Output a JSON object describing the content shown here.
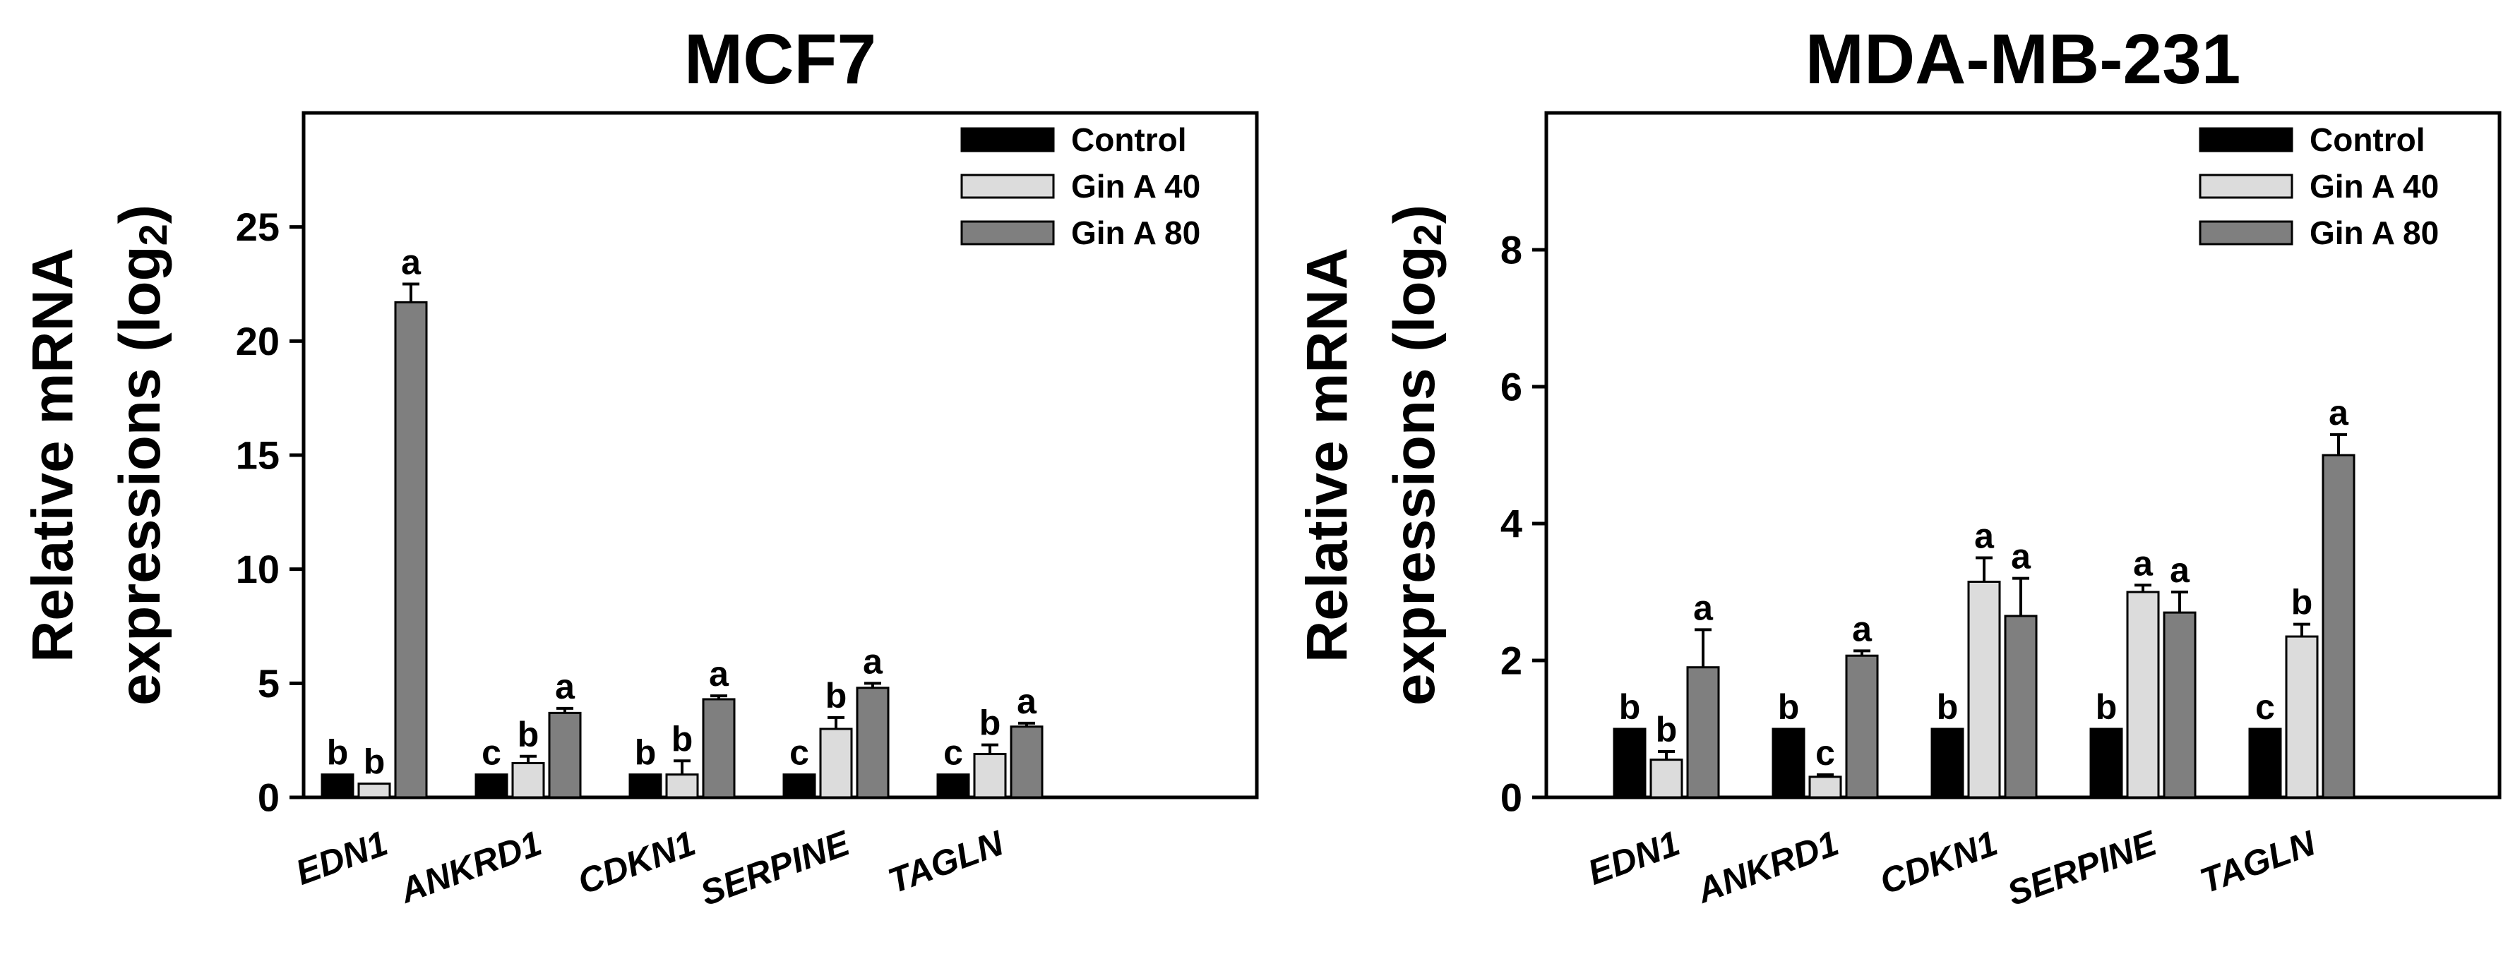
{
  "chart_data": [
    {
      "type": "bar",
      "title": "MCF7",
      "ylabel_line1": "Relative mRNA",
      "ylabel_line2": "expressions (log",
      "ylabel_sub": "2",
      "ylabel_close": ")",
      "ylim": [
        0,
        30
      ],
      "yticks": [
        0,
        5,
        10,
        15,
        20,
        25
      ],
      "grid": false,
      "legend_position": "top-right",
      "categories": [
        "EDN1",
        "ANKRD1",
        "CDKN1",
        "SERPINE",
        "TAGLN"
      ],
      "series": [
        {
          "name": "Control",
          "color": "#000000",
          "values": [
            1,
            1,
            1,
            1,
            1
          ],
          "errors": [
            0,
            0,
            0,
            0,
            0
          ],
          "letters": [
            "b",
            "c",
            "b",
            "c",
            "c"
          ]
        },
        {
          "name": "Gin A 40",
          "color": "#dcdcdc",
          "values": [
            0.6,
            1.5,
            1.0,
            3.0,
            1.9
          ],
          "errors": [
            0,
            0.3,
            0.6,
            0.5,
            0.4
          ],
          "letters": [
            "b",
            "b",
            "b",
            "b",
            "b"
          ]
        },
        {
          "name": "Gin A 80",
          "color": "#7f7f7f",
          "values": [
            21.7,
            3.7,
            4.3,
            4.8,
            3.1
          ],
          "errors": [
            0.8,
            0.2,
            0.15,
            0.2,
            0.15
          ],
          "letters": [
            "a",
            "a",
            "a",
            "a",
            "a"
          ]
        }
      ]
    },
    {
      "type": "bar",
      "title": "MDA-MB-231",
      "ylabel_line1": "Relative mRNA",
      "ylabel_line2": "expressions (log",
      "ylabel_sub": "2",
      "ylabel_close": ")",
      "ylim": [
        0,
        10
      ],
      "yticks": [
        0,
        2,
        4,
        6,
        8
      ],
      "grid": false,
      "legend_position": "top-right",
      "categories": [
        "EDN1",
        "ANKRD1",
        "CDKN1",
        "SERPINE",
        "TAGLN"
      ],
      "series": [
        {
          "name": "Control",
          "color": "#000000",
          "values": [
            1,
            1,
            1,
            1,
            1
          ],
          "errors": [
            0,
            0,
            0,
            0,
            0
          ],
          "letters": [
            "b",
            "b",
            "b",
            "b",
            "c"
          ]
        },
        {
          "name": "Gin A 40",
          "color": "#dcdcdc",
          "values": [
            0.55,
            0.3,
            3.15,
            3.0,
            2.35
          ],
          "errors": [
            0.12,
            0.03,
            0.35,
            0.1,
            0.18
          ],
          "letters": [
            "b",
            "c",
            "a",
            "a",
            "b"
          ]
        },
        {
          "name": "Gin A 80",
          "color": "#7f7f7f",
          "values": [
            1.9,
            2.07,
            2.65,
            2.7,
            5.0
          ],
          "errors": [
            0.55,
            0.07,
            0.55,
            0.3,
            0.3
          ],
          "letters": [
            "a",
            "a",
            "a",
            "a",
            "a"
          ]
        }
      ]
    }
  ]
}
